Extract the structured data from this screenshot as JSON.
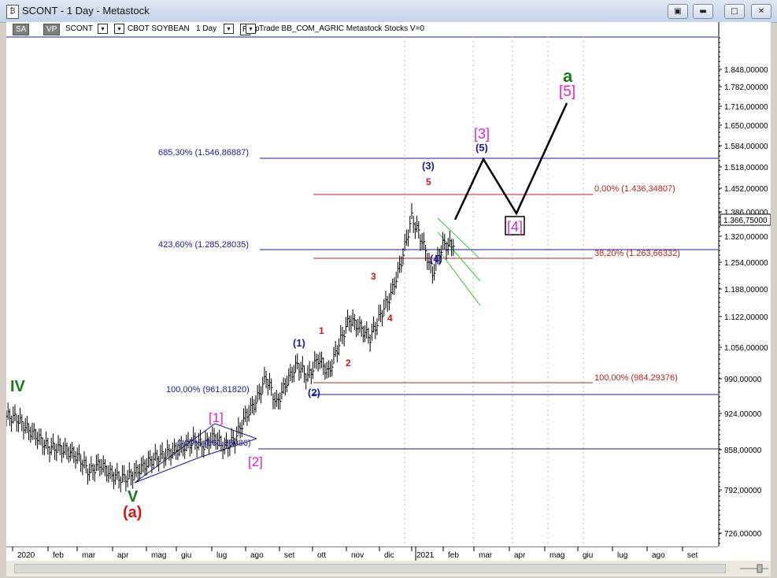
{
  "window": {
    "title": "SCONT - 1 Day - Metastock",
    "icon_glyph": "₿"
  },
  "toolbar": {
    "sa": "SA",
    "vp": "VP",
    "symbol": "SCONT",
    "desc": "CBOT SOYBEAN",
    "period": "1 Day",
    "r": "R",
    "extra": "Trade  BB_COM_AGRIC  Metastock  Stocks  V=0",
    "stray_p": "p"
  },
  "price_axis": {
    "ticks": [
      "1.848,00000",
      "1.782,00000",
      "1.716,00000",
      "1.650,00000",
      "1.584,00000",
      "1.518,00000",
      "1.452,00000",
      "1.386,00000",
      "1.320,00000",
      "1.254,00000",
      "1.188,00000",
      "1.122,00000",
      "1.056,00000",
      "990,00000",
      "924,00000",
      "858,00000",
      "792,00000",
      "726,00000"
    ],
    "current": "1.366,75000"
  },
  "date_axis": {
    "labels": [
      "2020",
      "feb",
      "mar",
      "apr",
      "mag",
      "giu",
      "lug",
      "ago",
      "set",
      "ott",
      "nov",
      "dic",
      "2021",
      "feb",
      "mar",
      "apr",
      "mag",
      "giu",
      "lug",
      "ago",
      "set"
    ]
  },
  "fib_levels": [
    {
      "label": "685,30% (1.546,86887)"
    },
    {
      "label": "423,60% (1.285,28035)"
    },
    {
      "label": "100,00% (961,81820)"
    },
    {
      "label": "0,00% (861,86086)"
    },
    {
      "label": "0,00% (1.436,34807)"
    },
    {
      "label": "38,20% (1.263,66332)"
    },
    {
      "label": "100,00% (984,29376)"
    }
  ],
  "wave_labels": {
    "IV": "IV",
    "V": "V",
    "a_paren": "(a)",
    "w1b": "[1]",
    "w2b": "[2]",
    "w1p": "(1)",
    "w2p": "(2)",
    "r1": "1",
    "r2": "2",
    "r3": "3",
    "r4": "4",
    "r5": "5",
    "w3p": "(3)",
    "w4p": "(4)",
    "w5p": "(5)",
    "w3b": "[3]",
    "w4b": "[4]",
    "w5b": "[5]",
    "a": "a"
  },
  "colors": {
    "magenta": "#e024c8",
    "blue": "#1a1aa0",
    "red": "#d01818",
    "green": "#1a7a1a",
    "fib_blue": "#1a1aa0",
    "fib_red": "#c02020",
    "channel": "#33cc33"
  },
  "chart_data": {
    "type": "line",
    "x_labels": [
      "2020",
      "feb",
      "mar",
      "apr",
      "mag",
      "giu",
      "lug",
      "ago",
      "set",
      "ott",
      "nov",
      "dic",
      "2021",
      "feb"
    ],
    "y_range": [
      700,
      1900
    ],
    "close": [
      955,
      950,
      925,
      905,
      880,
      878,
      870,
      855,
      820,
      840,
      815,
      805,
      810,
      830,
      850,
      860,
      870,
      880,
      895,
      885,
      905,
      880,
      900,
      955,
      990,
      1050,
      985,
      1040,
      1080,
      1050,
      1095,
      1060,
      1130,
      1190,
      1170,
      1145,
      1200,
      1250,
      1330,
      1436,
      1380,
      1300,
      1370,
      1366.75
    ]
  }
}
